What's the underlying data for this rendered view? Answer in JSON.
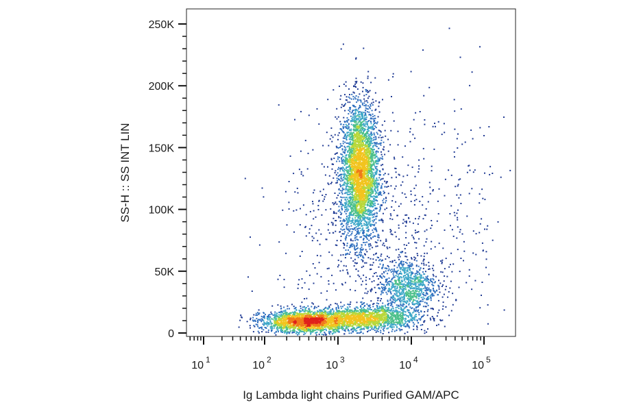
{
  "chart_data": {
    "type": "scatter",
    "xlabel": "Ig Lambda light chains Purified GAM/APC",
    "ylabel": "SS-H :: SS INT LIN",
    "x_scale": "log",
    "x_range": [
      10,
      100000
    ],
    "y_range": [
      0,
      250000
    ],
    "y_ticks": [
      {
        "value": 0,
        "label": "0"
      },
      {
        "value": 50000,
        "label": "50K"
      },
      {
        "value": 100000,
        "label": "100K"
      },
      {
        "value": 150000,
        "label": "150K"
      },
      {
        "value": 200000,
        "label": "200K"
      },
      {
        "value": 250000,
        "label": "250K"
      }
    ],
    "x_ticks": [
      {
        "value": 10,
        "base": "10",
        "exp": "1"
      },
      {
        "value": 100,
        "base": "10",
        "exp": "2"
      },
      {
        "value": 1000,
        "base": "10",
        "exp": "3"
      },
      {
        "value": 10000,
        "base": "10",
        "exp": "4"
      },
      {
        "value": 100000,
        "base": "10",
        "exp": "5"
      }
    ],
    "color_scale": [
      "#1f3a93",
      "#2f6fbf",
      "#3fa8c8",
      "#4cc08a",
      "#b8d83a",
      "#f2c41e",
      "#f07a1a",
      "#e0201b"
    ],
    "populations": [
      {
        "x_center": 2000,
        "y_center": 130000,
        "x_log_spread": 0.13,
        "y_spread": 28000,
        "count": 3400
      },
      {
        "x_center": 380,
        "y_center": 9000,
        "x_log_spread": 0.32,
        "y_spread": 4500,
        "count": 2000
      },
      {
        "x_center": 2500,
        "y_center": 12000,
        "x_log_spread": 0.35,
        "y_spread": 5000,
        "count": 1500
      },
      {
        "x_center": 9000,
        "y_center": 38000,
        "x_log_spread": 0.2,
        "y_spread": 11000,
        "count": 900
      },
      {
        "x_center": 2000,
        "y_center": 85000,
        "x_log_spread": 0.55,
        "y_spread": 45000,
        "count": 600
      },
      {
        "x_center": 30000,
        "y_center": 90000,
        "x_log_spread": 0.45,
        "y_spread": 60000,
        "count": 220
      }
    ]
  }
}
